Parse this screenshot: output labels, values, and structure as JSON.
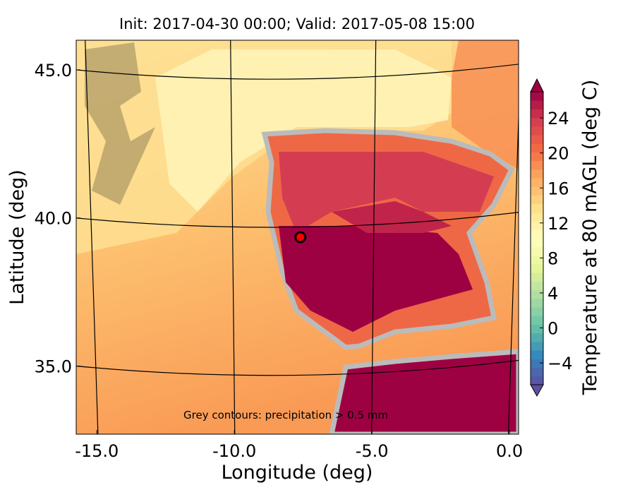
{
  "chart_data": {
    "type": "map",
    "title": "Init: 2017-04-30 00:00; Valid: 2017-05-08 15:00",
    "xlabel": "Longitude (deg)",
    "ylabel": "Latitude (deg)",
    "xlim": [
      -15.75,
      0.33
    ],
    "ylim": [
      32.7,
      46.0
    ],
    "xticks": [
      {
        "value": -15,
        "label": "-15.0"
      },
      {
        "value": -10,
        "label": "-10.0"
      },
      {
        "value": -5,
        "label": "-5.0"
      },
      {
        "value": 0,
        "label": "0.0"
      }
    ],
    "yticks": [
      {
        "value": 35,
        "label": "35.0"
      },
      {
        "value": 40,
        "label": "40.0"
      },
      {
        "value": 45,
        "label": "45.0"
      }
    ],
    "annotation": "Grey contours: precipitation > 0.5 mm",
    "marker": {
      "x": -7.6,
      "y": 39.35,
      "color": "#ff0000"
    },
    "colorbar": {
      "label": "Temperature at 80 mAGL (deg C)",
      "lim": [
        -6.5,
        27
      ],
      "ticks": [
        {
          "value": -4,
          "label": "−4"
        },
        0,
        4,
        8,
        12,
        16,
        20,
        24
      ],
      "colors": [
        "#5e4fa2",
        "#3288bd",
        "#66c2a5",
        "#abdda4",
        "#e6f598",
        "#ffffbf",
        "#fee08b",
        "#fdae61",
        "#f46d43",
        "#d53e4f",
        "#9e0142"
      ]
    }
  }
}
